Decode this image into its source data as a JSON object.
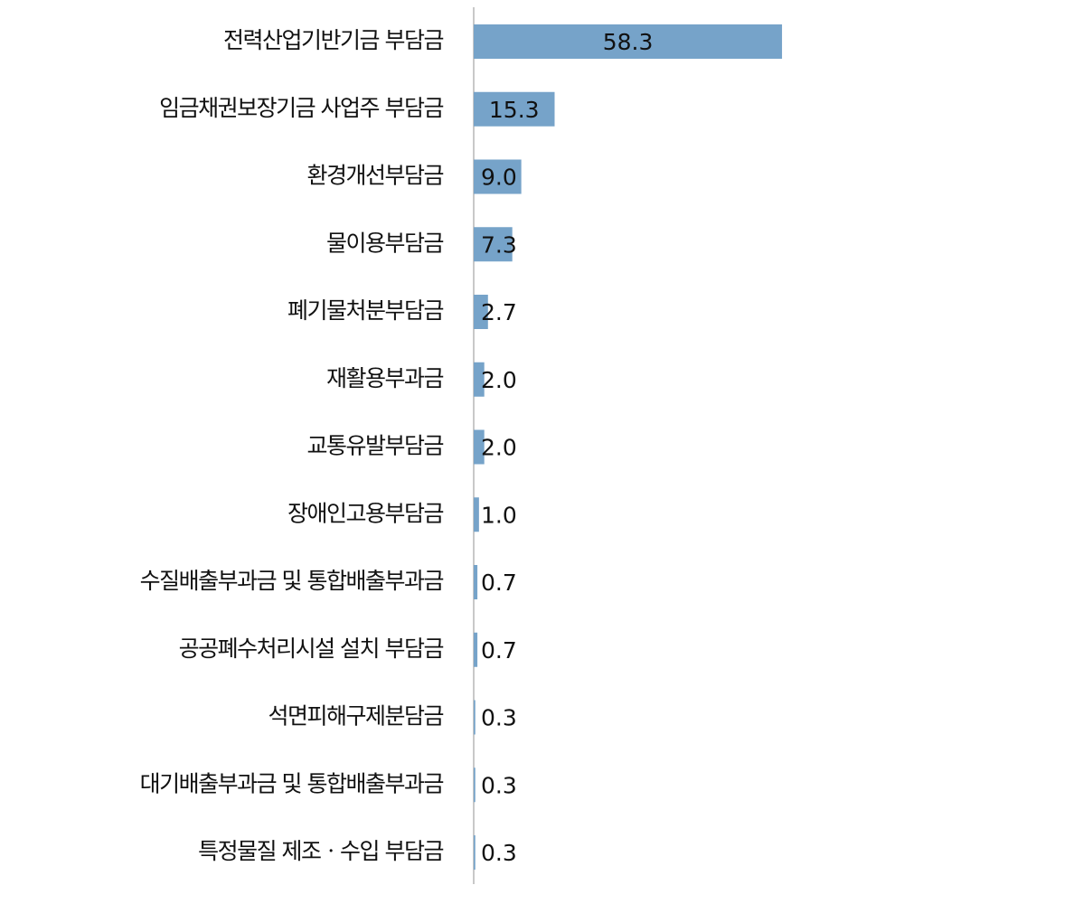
{
  "chart_data": {
    "type": "bar",
    "orientation": "horizontal",
    "categories": [
      "전력산업기반기금 부담금",
      "임금채권보장기금 사업주 부담금",
      "환경개선부담금",
      "물이용부담금",
      "폐기물처분부담금",
      "재활용부과금",
      "교통유발부담금",
      "장애인고용부담금",
      "수질배출부과금 및 통합배출부과금",
      "공공폐수처리시설 설치 부담금",
      "석면피해구제분담금",
      "대기배출부과금 및 통합배출부과금",
      "특정물질 제조ㆍ수입 부담금"
    ],
    "values": [
      58.3,
      15.3,
      9.0,
      7.3,
      2.7,
      2.0,
      2.0,
      1.0,
      0.7,
      0.7,
      0.3,
      0.3,
      0.3
    ],
    "value_labels": [
      "58.3",
      "15.3",
      "9.0",
      "7.3",
      "2.7",
      "2.0",
      "2.0",
      "1.0",
      "0.7",
      "0.7",
      "0.3",
      "0.3",
      "0.3"
    ],
    "color": "#76a3c9",
    "xlim": [
      0,
      60
    ]
  }
}
